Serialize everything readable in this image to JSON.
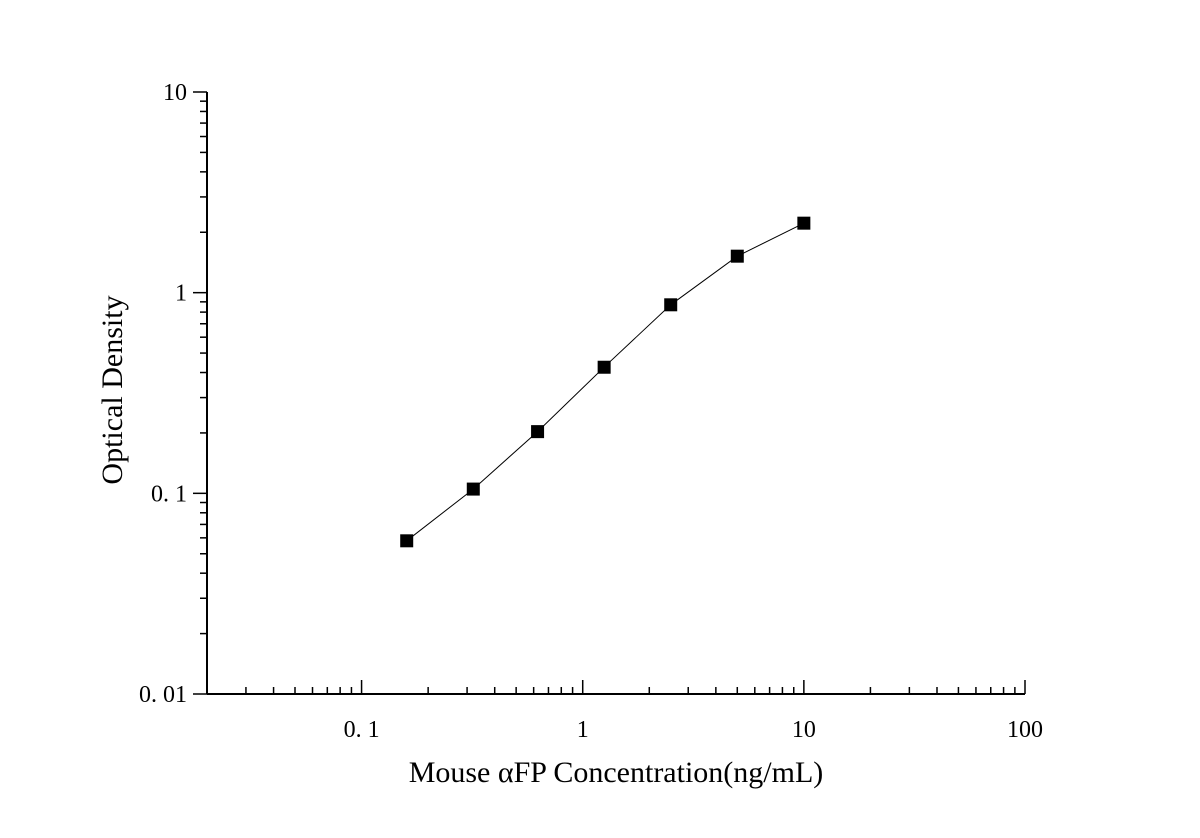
{
  "chart_data": {
    "type": "scatter",
    "title": "",
    "xlabel": "Mouse αFP Concentration(ng/mL)",
    "ylabel": "Optical Density",
    "x_scale": "log",
    "y_scale": "log",
    "xlim": [
      0.02,
      100
    ],
    "ylim": [
      0.01,
      10
    ],
    "grid": false,
    "legend": "none",
    "x_ticks": [
      {
        "value": 0.1,
        "label": "0. 1"
      },
      {
        "value": 1,
        "label": "1"
      },
      {
        "value": 10,
        "label": "10"
      },
      {
        "value": 100,
        "label": "100"
      }
    ],
    "y_ticks": [
      {
        "value": 0.01,
        "label": "0. 01"
      },
      {
        "value": 0.1,
        "label": "0. 1"
      },
      {
        "value": 1,
        "label": "1"
      },
      {
        "value": 10,
        "label": "10"
      }
    ],
    "series": [
      {
        "x": [
          0.16,
          0.32,
          0.625,
          1.25,
          2.5,
          5,
          10
        ],
        "y": [
          0.058,
          0.105,
          0.203,
          0.425,
          0.87,
          1.52,
          2.22
        ],
        "marker": "square",
        "color": "#000000"
      }
    ]
  }
}
